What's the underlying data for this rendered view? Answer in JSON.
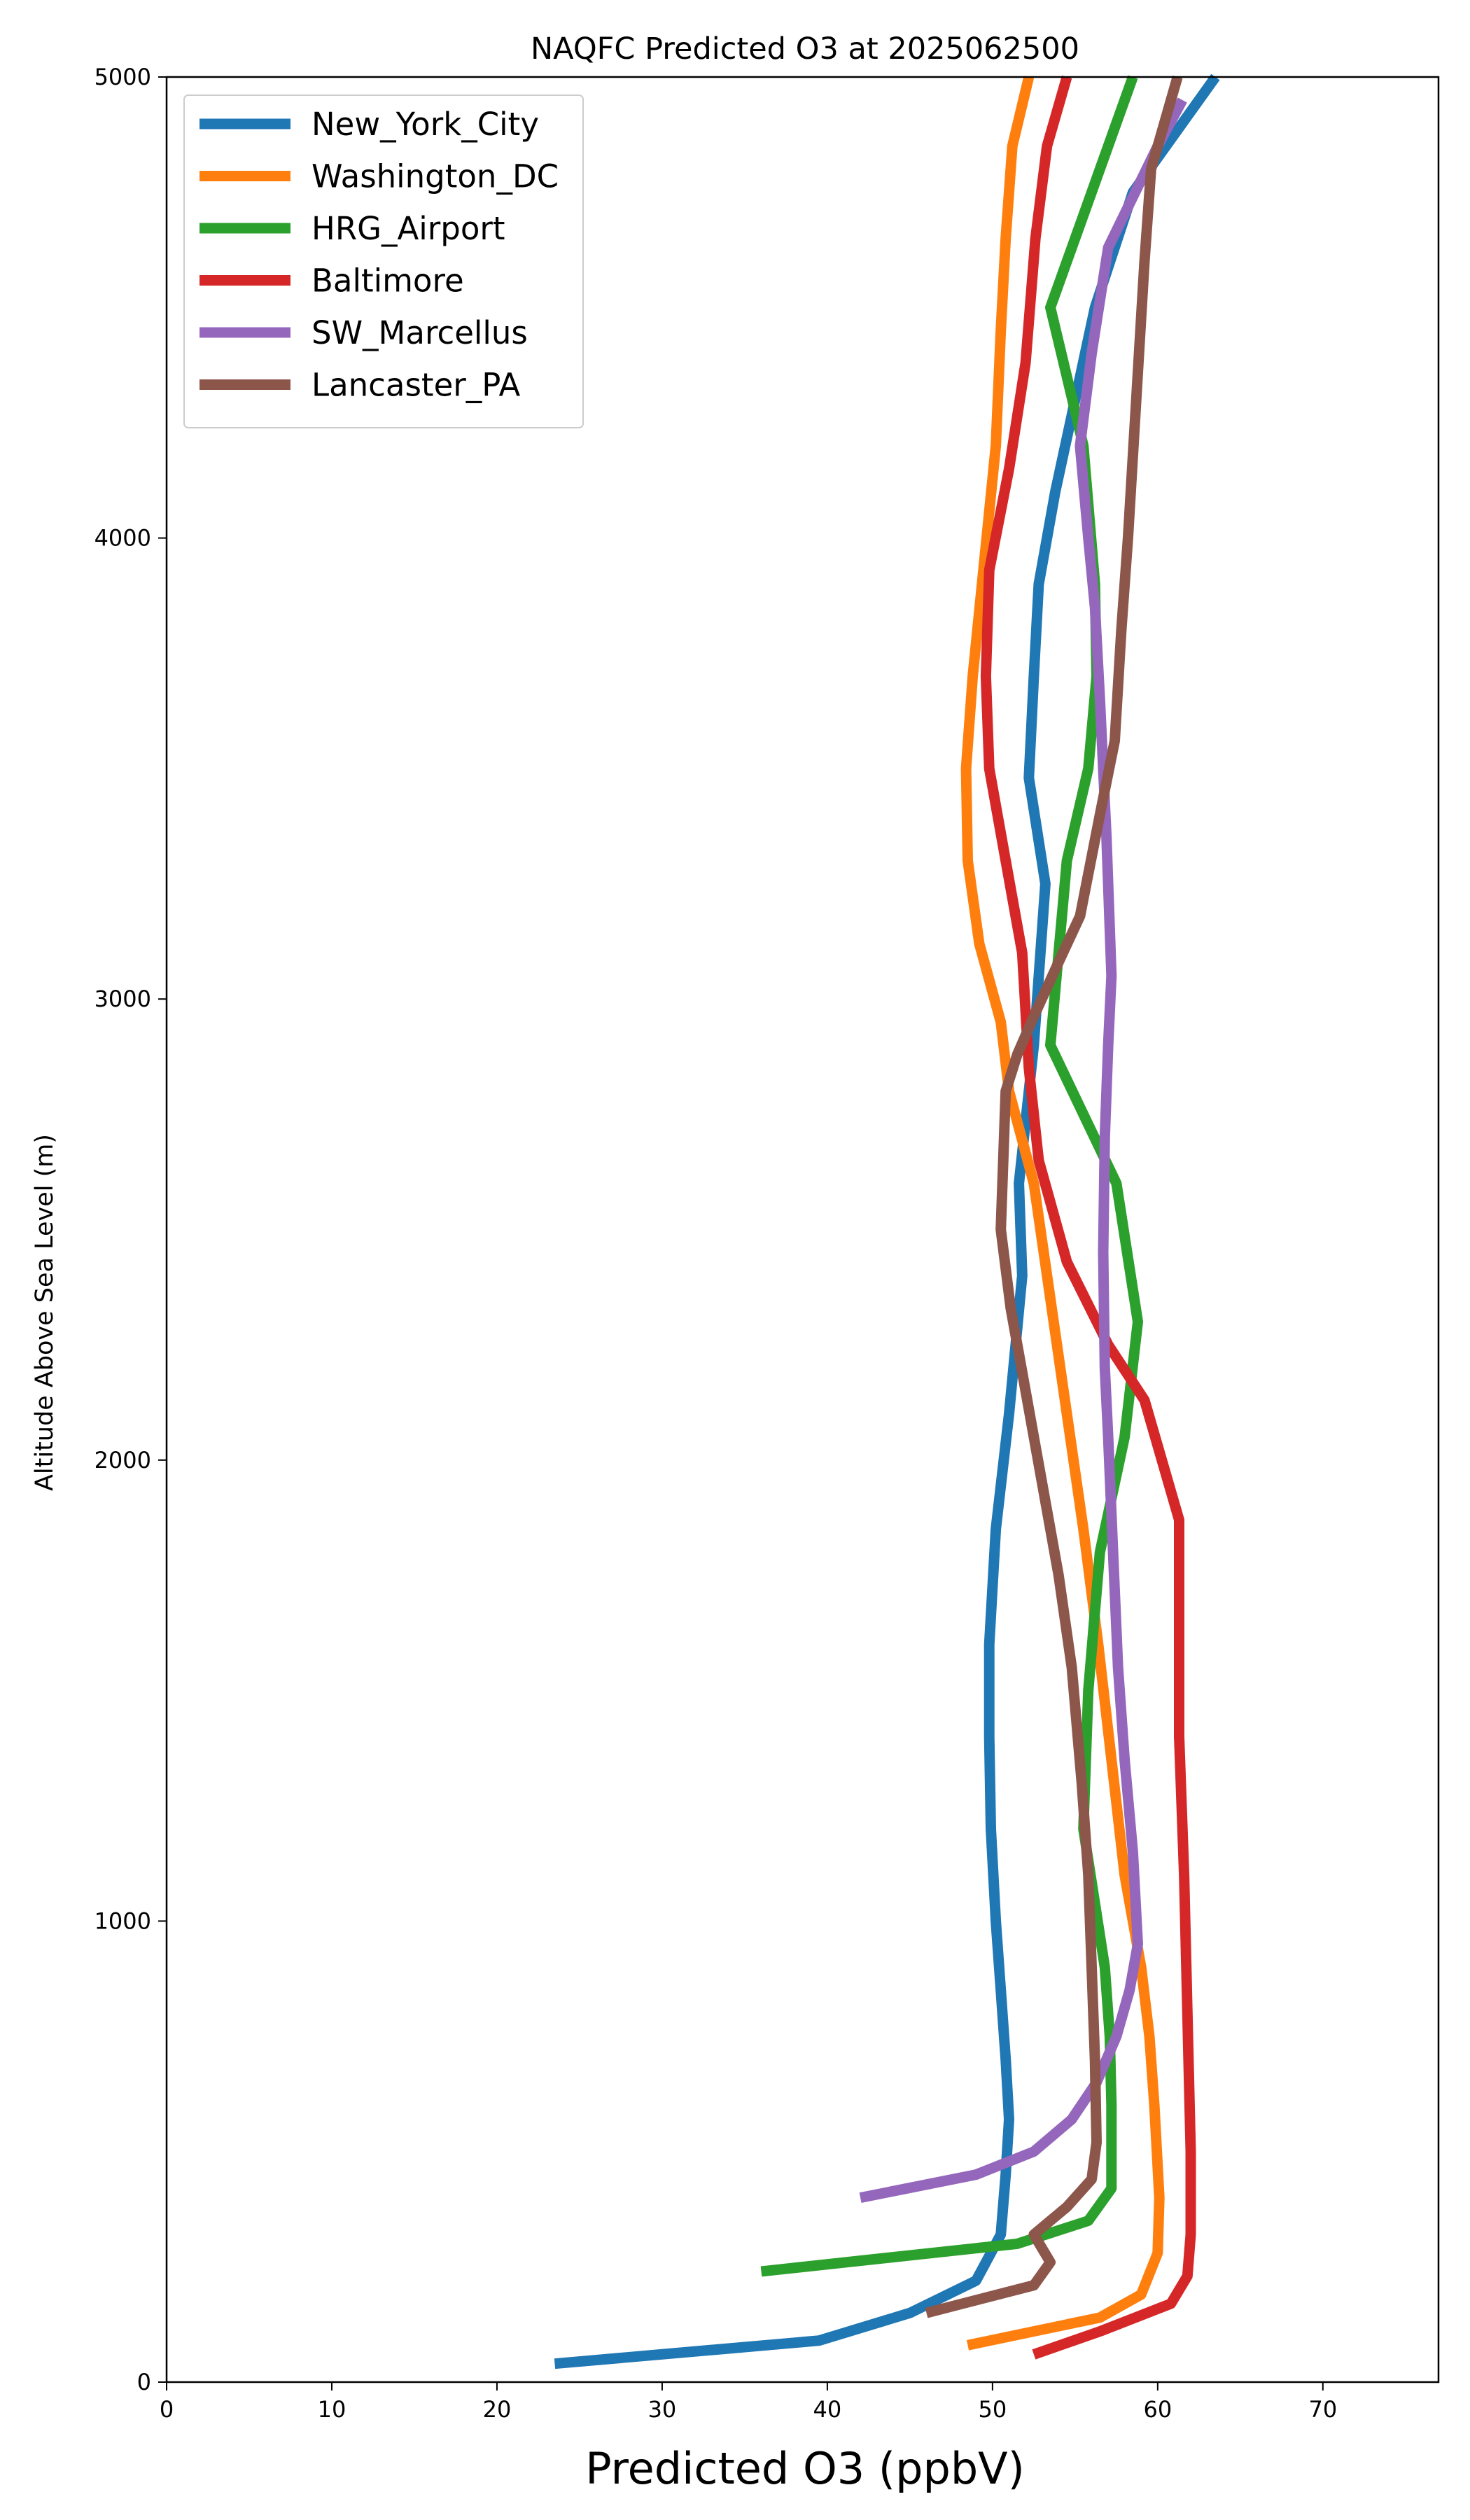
{
  "chart_data": {
    "type": "line",
    "title": "NAQFC Predicted O3 at 2025062500",
    "xlabel": "Predicted O3 (ppbV)",
    "ylabel": "Altitude Above Sea Level (m)",
    "xlim": [
      0,
      77
    ],
    "ylim": [
      0,
      5000
    ],
    "xticks": [
      0,
      10,
      20,
      30,
      40,
      50,
      60,
      70
    ],
    "yticks": [
      0,
      1000,
      2000,
      3000,
      4000,
      5000
    ],
    "grid": false,
    "legend_position": "top-left",
    "series": [
      {
        "name": "New_York_City",
        "color": "#1f77b4",
        "points": [
          [
            23.5,
            40
          ],
          [
            39.5,
            90
          ],
          [
            45,
            150
          ],
          [
            49,
            220
          ],
          [
            50.5,
            320
          ],
          [
            50.8,
            450
          ],
          [
            51,
            570
          ],
          [
            50.8,
            700
          ],
          [
            50.5,
            850
          ],
          [
            50.2,
            1000
          ],
          [
            49.9,
            1200
          ],
          [
            49.8,
            1400
          ],
          [
            49.8,
            1600
          ],
          [
            50.2,
            1850
          ],
          [
            51,
            2100
          ],
          [
            51.8,
            2400
          ],
          [
            51.6,
            2600
          ],
          [
            52.5,
            2900
          ],
          [
            53.2,
            3250
          ],
          [
            52.2,
            3480
          ],
          [
            52.5,
            3700
          ],
          [
            52.8,
            3900
          ],
          [
            53.8,
            4100
          ],
          [
            55,
            4300
          ],
          [
            56.2,
            4500
          ],
          [
            58.5,
            4750
          ],
          [
            63.5,
            5000
          ]
        ]
      },
      {
        "name": "Washington_DC",
        "color": "#ff7f0e",
        "points": [
          [
            48.5,
            80
          ],
          [
            56.5,
            140
          ],
          [
            59,
            190
          ],
          [
            60,
            280
          ],
          [
            60.1,
            400
          ],
          [
            59.8,
            600
          ],
          [
            59.5,
            750
          ],
          [
            59,
            900
          ],
          [
            58,
            1100
          ],
          [
            57.2,
            1350
          ],
          [
            56.4,
            1600
          ],
          [
            55.5,
            1850
          ],
          [
            54.5,
            2100
          ],
          [
            53.5,
            2350
          ],
          [
            52.5,
            2600
          ],
          [
            51,
            2800
          ],
          [
            50.5,
            2950
          ],
          [
            49.2,
            3120
          ],
          [
            48.5,
            3300
          ],
          [
            48.4,
            3500
          ],
          [
            48.8,
            3700
          ],
          [
            49.5,
            3950
          ],
          [
            50.2,
            4200
          ],
          [
            50.5,
            4450
          ],
          [
            50.8,
            4650
          ],
          [
            51.2,
            4850
          ],
          [
            52.2,
            5000
          ]
        ]
      },
      {
        "name": "HRG_Airport",
        "color": "#2ca02c",
        "points": [
          [
            36,
            240
          ],
          [
            51.5,
            300
          ],
          [
            55.8,
            350
          ],
          [
            57.2,
            420
          ],
          [
            57.2,
            600
          ],
          [
            57.1,
            750
          ],
          [
            56.8,
            900
          ],
          [
            55.5,
            1200
          ],
          [
            55.8,
            1500
          ],
          [
            56.5,
            1800
          ],
          [
            58,
            2050
          ],
          [
            58.8,
            2300
          ],
          [
            57.5,
            2600
          ],
          [
            53.5,
            2900
          ],
          [
            54,
            3100
          ],
          [
            54.5,
            3300
          ],
          [
            55.8,
            3500
          ],
          [
            56.3,
            3700
          ],
          [
            56.2,
            3900
          ],
          [
            55.5,
            4200
          ],
          [
            53.5,
            4500
          ],
          [
            55.5,
            4700
          ],
          [
            58.5,
            5000
          ]
        ]
      },
      {
        "name": "Baltimore",
        "color": "#d62728",
        "points": [
          [
            52.5,
            60
          ],
          [
            56.5,
            110
          ],
          [
            60.8,
            170
          ],
          [
            61.8,
            230
          ],
          [
            62,
            320
          ],
          [
            62,
            500
          ],
          [
            61.8,
            800
          ],
          [
            61.6,
            1100
          ],
          [
            61.3,
            1400
          ],
          [
            61.3,
            1650
          ],
          [
            61.3,
            1870
          ],
          [
            59.2,
            2130
          ],
          [
            57,
            2250
          ],
          [
            54.5,
            2430
          ],
          [
            52.8,
            2650
          ],
          [
            52.2,
            2850
          ],
          [
            51.8,
            3100
          ],
          [
            50.8,
            3300
          ],
          [
            49.8,
            3500
          ],
          [
            49.6,
            3700
          ],
          [
            49.8,
            3930
          ],
          [
            51,
            4150
          ],
          [
            52,
            4380
          ],
          [
            52.6,
            4650
          ],
          [
            53.3,
            4850
          ],
          [
            54.5,
            5000
          ]
        ]
      },
      {
        "name": "SW_Marcellus",
        "color": "#9467bd",
        "points": [
          [
            42,
            400
          ],
          [
            49,
            450
          ],
          [
            52.5,
            500
          ],
          [
            54.8,
            570
          ],
          [
            56.3,
            650
          ],
          [
            57.5,
            750
          ],
          [
            58.3,
            850
          ],
          [
            58.8,
            950
          ],
          [
            58.5,
            1150
          ],
          [
            58,
            1350
          ],
          [
            57.6,
            1550
          ],
          [
            57.3,
            1800
          ],
          [
            57,
            2050
          ],
          [
            56.8,
            2200
          ],
          [
            56.7,
            2450
          ],
          [
            56.8,
            2700
          ],
          [
            57,
            2900
          ],
          [
            57.2,
            3050
          ],
          [
            56.9,
            3350
          ],
          [
            56.5,
            3650
          ],
          [
            56.2,
            3850
          ],
          [
            55.8,
            4000
          ],
          [
            55.3,
            4200
          ],
          [
            56,
            4400
          ],
          [
            57,
            4630
          ],
          [
            60,
            4850
          ],
          [
            61.5,
            4950
          ]
        ]
      },
      {
        "name": "Lancaster_PA",
        "color": "#8c564b",
        "points": [
          [
            46,
            150
          ],
          [
            52.5,
            210
          ],
          [
            53.5,
            260
          ],
          [
            52.5,
            320
          ],
          [
            54.5,
            380
          ],
          [
            56,
            440
          ],
          [
            56.3,
            520
          ],
          [
            56.2,
            700
          ],
          [
            56,
            900
          ],
          [
            55.8,
            1100
          ],
          [
            55.4,
            1300
          ],
          [
            54.8,
            1550
          ],
          [
            54,
            1750
          ],
          [
            53,
            1950
          ],
          [
            52,
            2150
          ],
          [
            51.1,
            2330
          ],
          [
            50.5,
            2500
          ],
          [
            50.8,
            2800
          ],
          [
            51.5,
            2880
          ],
          [
            52.6,
            2970
          ],
          [
            54,
            3080
          ],
          [
            55.3,
            3180
          ],
          [
            56.5,
            3400
          ],
          [
            57.4,
            3560
          ],
          [
            57.8,
            3800
          ],
          [
            58.2,
            4000
          ],
          [
            58.7,
            4300
          ],
          [
            59.2,
            4600
          ],
          [
            59.6,
            4800
          ],
          [
            61.2,
            5000
          ]
        ]
      }
    ]
  }
}
